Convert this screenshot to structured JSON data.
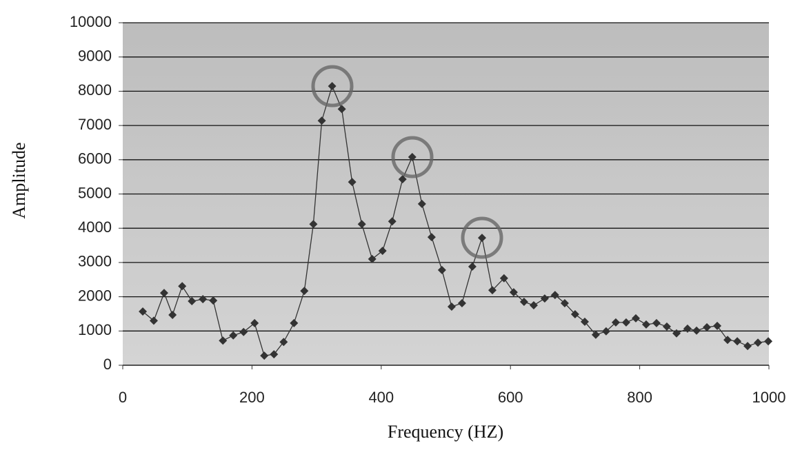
{
  "chart_data": {
    "type": "line",
    "x_label": "Frequency (HZ)",
    "y_label": "Amplitude",
    "xlim": [
      0,
      1000
    ],
    "xticks": [
      0,
      200,
      400,
      600,
      800,
      1000
    ],
    "ylim": [
      0,
      10000
    ],
    "yticks": [
      0,
      1000,
      2000,
      3000,
      4000,
      5000,
      6000,
      7000,
      8000,
      9000,
      10000
    ],
    "grid": true,
    "series": [
      {
        "color": "#333333",
        "x": [
          31,
          48,
          64,
          77,
          92,
          107,
          124,
          140,
          155,
          171,
          187,
          204,
          219,
          234,
          249,
          265,
          281,
          295,
          308,
          324,
          339,
          355,
          370,
          386,
          402,
          417,
          433,
          448,
          463,
          478,
          494,
          509,
          525,
          541,
          556,
          572,
          590,
          605,
          621,
          636,
          653,
          669,
          684,
          700,
          715,
          732,
          748,
          763,
          779,
          794,
          810,
          826,
          842,
          857,
          874,
          888,
          904,
          920,
          936,
          951,
          967,
          983,
          999
        ],
        "values": [
          1570,
          1300,
          2110,
          1470,
          2310,
          1870,
          1930,
          1890,
          720,
          870,
          970,
          1230,
          280,
          320,
          680,
          1230,
          2170,
          4120,
          7140,
          8150,
          7480,
          5350,
          4120,
          3100,
          3340,
          4200,
          5430,
          6080,
          4710,
          3740,
          2780,
          1710,
          1810,
          2880,
          3720,
          2190,
          2540,
          2130,
          1850,
          1750,
          1950,
          2050,
          1810,
          1490,
          1270,
          890,
          990,
          1250,
          1250,
          1370,
          1190,
          1230,
          1130,
          930,
          1070,
          1010,
          1110,
          1150,
          740,
          700,
          560,
          660,
          700
        ]
      }
    ]
  }
}
